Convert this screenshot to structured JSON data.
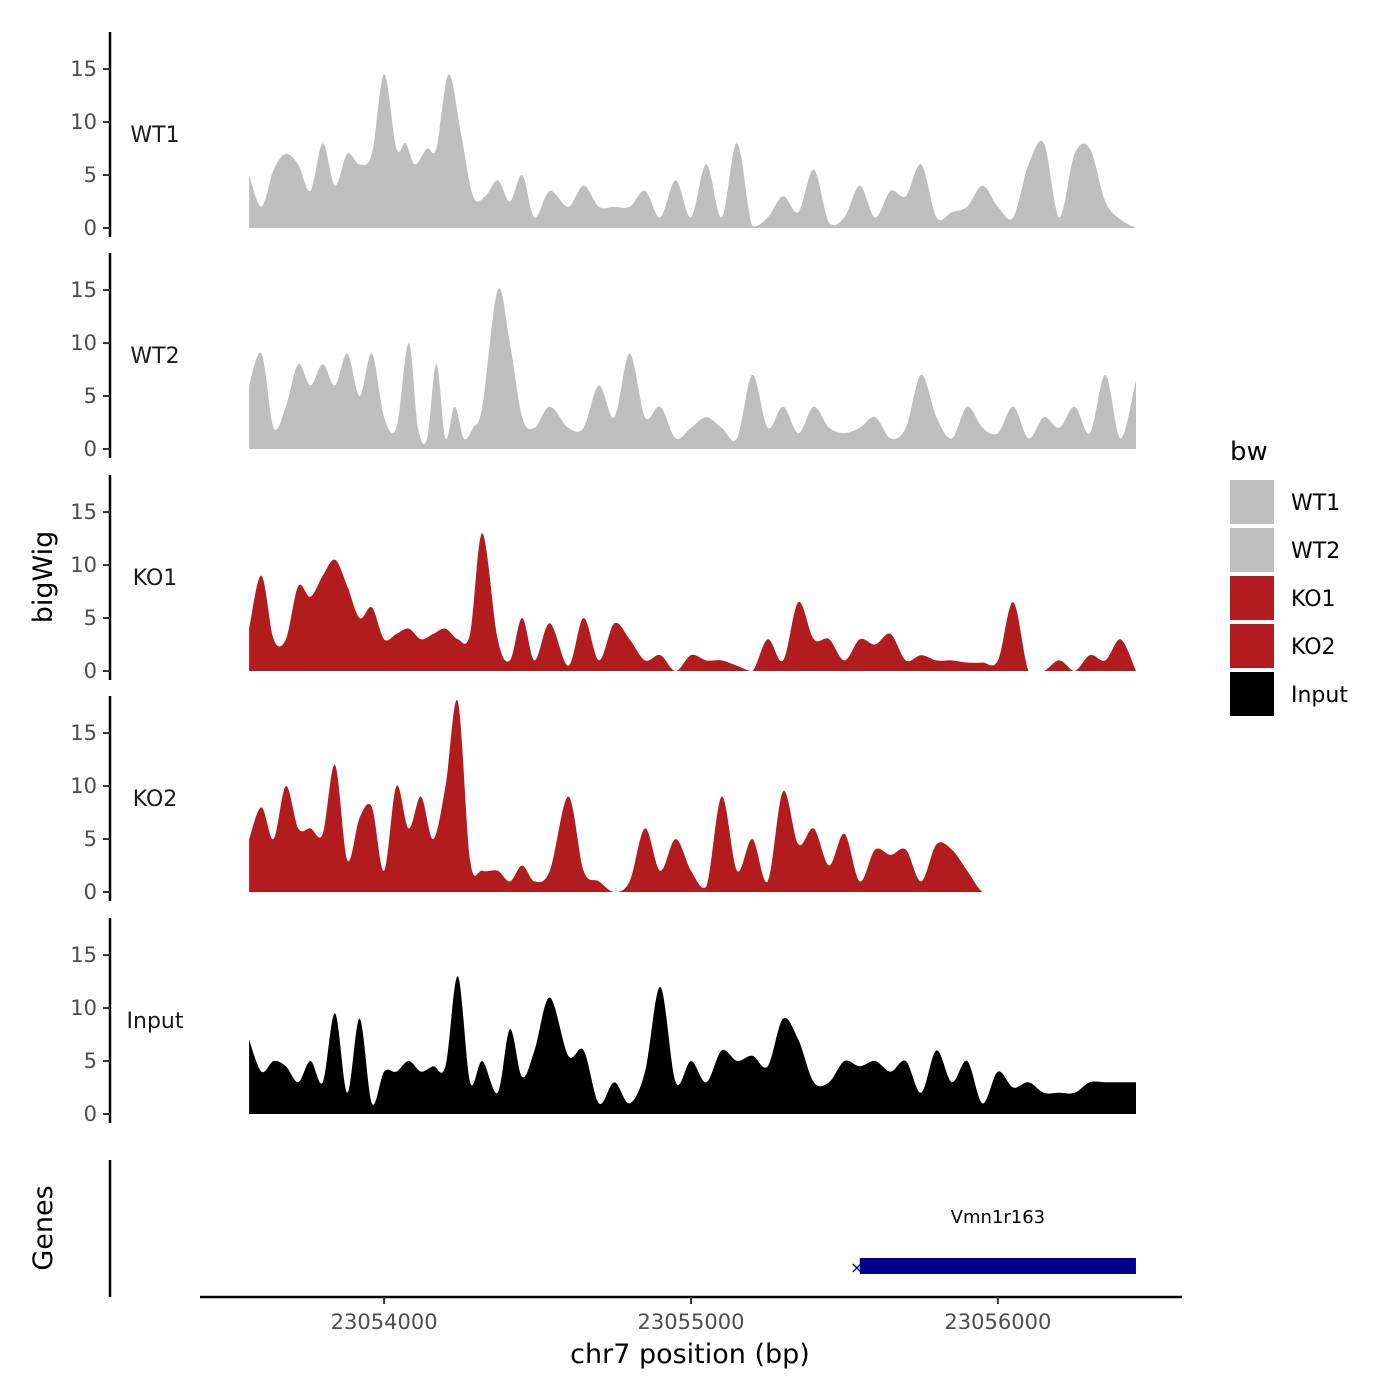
{
  "chart_data": {
    "type": "area",
    "ylabel": "bigWig",
    "genes_label": "Genes",
    "xlabel": "chr7 position (bp)",
    "xlim": [
      23053400,
      23056600
    ],
    "x_ticks": [
      23054000,
      23055000,
      23056000
    ],
    "x_tick_labels": [
      "23054000",
      "23055000",
      "23056000"
    ],
    "ylim": [
      0,
      18.5
    ],
    "y_ticks": [
      0,
      5,
      10,
      15
    ],
    "y_tick_labels": [
      "0",
      "5",
      "10",
      "15"
    ],
    "legend": {
      "title": "bw",
      "position": "right",
      "entries": [
        {
          "label": "WT1",
          "color": "#bebebe"
        },
        {
          "label": "WT2",
          "color": "#bebebe"
        },
        {
          "label": "KO1",
          "color": "#b21c1f"
        },
        {
          "label": "KO2",
          "color": "#b21c1f"
        },
        {
          "label": "Input",
          "color": "#000000"
        }
      ]
    },
    "series": [
      {
        "name": "WT1",
        "color": "#bebebe",
        "label": "WT1",
        "x": [
          23053560,
          23053600,
          23053640,
          23053680,
          23053720,
          23053760,
          23053800,
          23053840,
          23053880,
          23053920,
          23053960,
          23054000,
          23054040,
          23054070,
          23054100,
          23054140,
          23054170,
          23054210,
          23054250,
          23054290,
          23054330,
          23054370,
          23054410,
          23054450,
          23054490,
          23054540,
          23054600,
          23054650,
          23054700,
          23054750,
          23054800,
          23054850,
          23054900,
          23054950,
          23055000,
          23055050,
          23055100,
          23055150,
          23055200,
          23055250,
          23055300,
          23055350,
          23055400,
          23055450,
          23055500,
          23055550,
          23055600,
          23055650,
          23055700,
          23055750,
          23055800,
          23055850,
          23055900,
          23055950,
          23056000,
          23056050,
          23056100,
          23056150,
          23056200,
          23056250,
          23056300,
          23056350,
          23056400,
          23056450
        ],
        "values": [
          5,
          2,
          5.5,
          7,
          6,
          3.5,
          8,
          4,
          7,
          6,
          7,
          14.5,
          7.5,
          8,
          6,
          7.5,
          7.5,
          14.5,
          9,
          3,
          3,
          4.5,
          2.5,
          5,
          1,
          3.5,
          2,
          4,
          2,
          2,
          2,
          3.5,
          1,
          4.5,
          1,
          6,
          1,
          8,
          0.2,
          1,
          3,
          1.5,
          5.5,
          0.5,
          1,
          4,
          1,
          3.5,
          3,
          6,
          1,
          1.5,
          2,
          4,
          2,
          1,
          6,
          8,
          1,
          7,
          7.5,
          2.5,
          0.8,
          0
        ],
        "ylim": [
          0,
          18.5
        ]
      },
      {
        "name": "WT2",
        "color": "#bebebe",
        "label": "WT2",
        "x": [
          23053560,
          23053600,
          23053640,
          23053680,
          23053720,
          23053760,
          23053800,
          23053840,
          23053880,
          23053920,
          23053960,
          23054000,
          23054040,
          23054080,
          23054110,
          23054140,
          23054170,
          23054200,
          23054230,
          23054260,
          23054290,
          23054320,
          23054370,
          23054410,
          23054450,
          23054490,
          23054540,
          23054600,
          23054650,
          23054700,
          23054750,
          23054800,
          23054850,
          23054900,
          23054950,
          23055000,
          23055050,
          23055100,
          23055150,
          23055200,
          23055250,
          23055300,
          23055350,
          23055400,
          23055450,
          23055500,
          23055550,
          23055600,
          23055650,
          23055700,
          23055750,
          23055800,
          23055850,
          23055900,
          23055950,
          23056000,
          23056050,
          23056100,
          23056150,
          23056200,
          23056250,
          23056300,
          23056350,
          23056400,
          23056450
        ],
        "values": [
          6,
          9,
          2,
          4,
          8,
          6,
          8,
          6,
          9,
          5,
          9,
          3,
          2,
          10,
          2,
          1,
          8,
          1,
          4,
          1,
          2,
          4,
          15,
          10,
          3,
          2,
          4,
          2,
          2,
          6,
          3,
          9,
          3,
          4,
          1,
          2,
          3,
          2,
          1,
          7,
          2,
          4,
          1.5,
          4,
          2,
          1.5,
          2,
          3,
          1,
          2,
          7,
          3,
          1,
          4,
          2,
          1.5,
          4,
          1,
          3,
          2,
          4,
          1.5,
          7,
          1,
          6.5
        ],
        "ylim": [
          0,
          18.5
        ]
      },
      {
        "name": "KO1",
        "color": "#b21c1f",
        "label": "KO1",
        "x": [
          23053560,
          23053600,
          23053640,
          23053680,
          23053720,
          23053760,
          23053800,
          23053840,
          23053880,
          23053920,
          23053960,
          23054000,
          23054040,
          23054080,
          23054120,
          23054160,
          23054200,
          23054240,
          23054280,
          23054320,
          23054370,
          23054410,
          23054450,
          23054490,
          23054540,
          23054600,
          23054650,
          23054700,
          23054750,
          23054800,
          23054850,
          23054900,
          23054950,
          23055000,
          23055050,
          23055100,
          23055150,
          23055200,
          23055250,
          23055300,
          23055350,
          23055400,
          23055450,
          23055500,
          23055550,
          23055600,
          23055650,
          23055700,
          23055750,
          23055800,
          23055850,
          23055900,
          23055950,
          23056000,
          23056050,
          23056100,
          23056150,
          23056200,
          23056250,
          23056300,
          23056350,
          23056400,
          23056450
        ],
        "values": [
          4,
          9,
          3,
          3,
          8,
          7,
          9,
          10.5,
          8,
          5,
          6,
          3,
          3.5,
          4,
          3,
          3.5,
          4,
          3,
          3.5,
          13,
          3,
          1,
          5,
          1,
          4.5,
          0.5,
          5,
          1,
          4.5,
          3,
          1,
          1.5,
          0,
          1.5,
          1,
          1,
          0.5,
          0,
          3,
          1,
          6.5,
          3,
          3,
          1,
          3,
          2.5,
          3.5,
          1,
          1.5,
          1,
          1,
          0.8,
          0.8,
          1,
          6.5,
          0,
          0,
          1,
          0,
          1.5,
          1,
          3,
          0
        ],
        "ylim": [
          0,
          18.5
        ]
      },
      {
        "name": "KO2",
        "color": "#b21c1f",
        "label": "KO2",
        "x": [
          23053560,
          23053600,
          23053640,
          23053680,
          23053720,
          23053760,
          23053800,
          23053840,
          23053880,
          23053920,
          23053960,
          23054000,
          23054040,
          23054080,
          23054120,
          23054160,
          23054200,
          23054240,
          23054280,
          23054320,
          23054370,
          23054410,
          23054450,
          23054490,
          23054540,
          23054600,
          23054650,
          23054700,
          23054750,
          23054800,
          23054850,
          23054900,
          23054950,
          23055000,
          23055050,
          23055100,
          23055150,
          23055200,
          23055250,
          23055300,
          23055350,
          23055400,
          23055450,
          23055500,
          23055550,
          23055600,
          23055650,
          23055700,
          23055750,
          23055800,
          23055850,
          23055900,
          23055950,
          23056000,
          23056050,
          23056100,
          23056150,
          23056200,
          23056250,
          23056300,
          23056350,
          23056400,
          23056450
        ],
        "values": [
          5,
          8,
          5,
          10,
          6,
          6,
          5.5,
          12,
          3,
          7,
          8,
          2,
          10,
          6,
          9,
          5,
          10,
          18,
          3,
          2,
          2,
          1,
          2.5,
          1,
          2,
          9,
          2,
          1,
          0,
          1,
          6,
          2,
          5,
          2,
          0.5,
          9,
          2,
          5,
          1,
          9.5,
          4.5,
          6,
          2.5,
          5.5,
          1,
          4,
          3.5,
          4,
          1,
          4.5,
          4,
          2,
          0,
          0,
          0,
          0,
          0,
          0,
          0,
          0,
          0,
          0,
          0
        ],
        "ylim": [
          0,
          18.5
        ]
      },
      {
        "name": "Input",
        "color": "#000000",
        "label": "Input",
        "x": [
          23053560,
          23053600,
          23053640,
          23053680,
          23053720,
          23053760,
          23053800,
          23053840,
          23053880,
          23053920,
          23053960,
          23054000,
          23054040,
          23054080,
          23054120,
          23054160,
          23054200,
          23054240,
          23054280,
          23054320,
          23054370,
          23054410,
          23054450,
          23054490,
          23054540,
          23054600,
          23054650,
          23054700,
          23054750,
          23054800,
          23054850,
          23054900,
          23054950,
          23055000,
          23055050,
          23055100,
          23055150,
          23055200,
          23055250,
          23055300,
          23055350,
          23055400,
          23055450,
          23055500,
          23055550,
          23055600,
          23055650,
          23055700,
          23055750,
          23055800,
          23055850,
          23055900,
          23055950,
          23056000,
          23056050,
          23056100,
          23056150,
          23056200,
          23056250,
          23056300,
          23056350,
          23056400,
          23056450
        ],
        "values": [
          7,
          4,
          5,
          4.5,
          3,
          5,
          3,
          9.5,
          2,
          9,
          1,
          4,
          4,
          5,
          4,
          4.5,
          4.5,
          13,
          3,
          5,
          2,
          8,
          3.5,
          6,
          11,
          5.5,
          6,
          1,
          3,
          1,
          4,
          12,
          3,
          5,
          3,
          6,
          5,
          5.5,
          4.5,
          9,
          7,
          3,
          3,
          5,
          4.5,
          5,
          4,
          5,
          2,
          6,
          3,
          5,
          1,
          4,
          2.5,
          3,
          2,
          2,
          2,
          3,
          3,
          3,
          3
        ],
        "ylim": [
          0,
          18.5
        ]
      }
    ],
    "genes": [
      {
        "name": "Vmn1r163",
        "start": 23055550,
        "end": 23056450,
        "strand": "-",
        "color": "#00008b"
      }
    ]
  }
}
